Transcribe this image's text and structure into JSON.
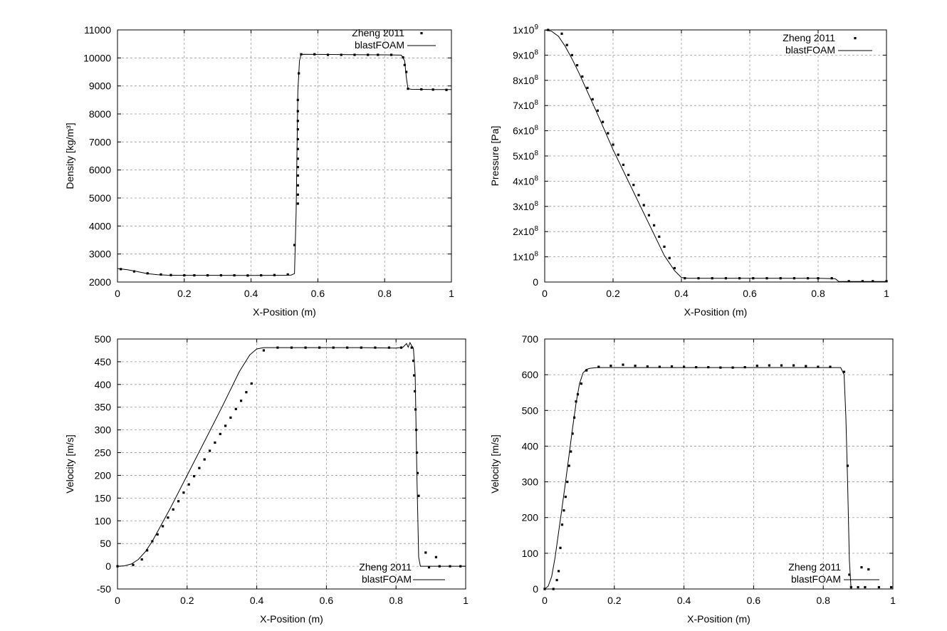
{
  "chart_data": [
    {
      "type": "line",
      "xlabel": "X-Position (m)",
      "ylabel": "Density [kg/m³]",
      "xlim": [
        0,
        1
      ],
      "ylim": [
        2000,
        11000
      ],
      "x_ticks": [
        "0",
        "0.2",
        "0.4",
        "0.6",
        "0.8",
        "1"
      ],
      "y_ticks": [
        "2000",
        "3000",
        "4000",
        "5000",
        "6000",
        "7000",
        "8000",
        "9000",
        "10000",
        "11000"
      ],
      "grid": true,
      "legend_position": "top-right",
      "series": [
        {
          "name": "Zheng 2011",
          "style": "points",
          "x": [
            0.01,
            0.05,
            0.09,
            0.13,
            0.16,
            0.2,
            0.23,
            0.27,
            0.31,
            0.35,
            0.39,
            0.43,
            0.47,
            0.51,
            0.53,
            0.54,
            0.54,
            0.54,
            0.54,
            0.54,
            0.54,
            0.54,
            0.54,
            0.54,
            0.54,
            0.54,
            0.54,
            0.543,
            0.55,
            0.59,
            0.63,
            0.67,
            0.71,
            0.75,
            0.78,
            0.82,
            0.855,
            0.86,
            0.865,
            0.87,
            0.91,
            0.945,
            0.985
          ],
          "y": [
            2460,
            2380,
            2310,
            2270,
            2250,
            2240,
            2240,
            2240,
            2240,
            2240,
            2235,
            2240,
            2250,
            2270,
            3320,
            4800,
            5120,
            5450,
            5800,
            6100,
            6400,
            6750,
            7100,
            7450,
            7750,
            8100,
            8500,
            9450,
            10130,
            10130,
            10110,
            10110,
            10110,
            10110,
            10110,
            10110,
            10020,
            9750,
            9500,
            8900,
            8880,
            8870,
            8860
          ]
        },
        {
          "name": "blastFOAM",
          "style": "line",
          "x": [
            0.0,
            0.03,
            0.06,
            0.09,
            0.12,
            0.15,
            0.2,
            0.3,
            0.4,
            0.5,
            0.52,
            0.53,
            0.535,
            0.54,
            0.545,
            0.55,
            0.6,
            0.7,
            0.8,
            0.85,
            0.86,
            0.865,
            0.87,
            0.88,
            0.95,
            1.0
          ],
          "y": [
            2480,
            2440,
            2370,
            2300,
            2260,
            2245,
            2240,
            2240,
            2235,
            2240,
            2250,
            2300,
            4500,
            8800,
            9900,
            10130,
            10125,
            10115,
            10110,
            10100,
            9900,
            9300,
            8900,
            8880,
            8870,
            8870
          ]
        }
      ]
    },
    {
      "type": "line",
      "xlabel": "X-Position (m)",
      "ylabel": "Pressure [Pa]",
      "xlim": [
        0,
        1
      ],
      "ylim": [
        0,
        1000000000
      ],
      "x_ticks": [
        "0",
        "0.2",
        "0.4",
        "0.6",
        "0.8",
        "1"
      ],
      "y_ticks": [
        "0",
        "1x10^8",
        "2x10^8",
        "3x10^8",
        "4x10^8",
        "5x10^8",
        "6x10^8",
        "7x10^8",
        "8x10^8",
        "9x10^8",
        "1x10^9"
      ],
      "grid": true,
      "legend_position": "top-right",
      "series": [
        {
          "name": "Zheng 2011",
          "style": "points",
          "x": [
            0.01,
            0.05,
            0.065,
            0.08,
            0.095,
            0.11,
            0.125,
            0.14,
            0.155,
            0.17,
            0.185,
            0.2,
            0.215,
            0.23,
            0.245,
            0.26,
            0.275,
            0.29,
            0.305,
            0.32,
            0.335,
            0.35,
            0.365,
            0.38,
            0.41,
            0.45,
            0.49,
            0.53,
            0.57,
            0.61,
            0.65,
            0.69,
            0.73,
            0.77,
            0.8,
            0.84,
            0.89,
            0.93,
            0.96,
            1.0
          ],
          "y": [
            1000000000,
            985000000,
            940000000,
            900000000,
            860000000,
            815000000,
            770000000,
            725000000,
            680000000,
            635000000,
            590000000,
            545000000,
            505000000,
            465000000,
            425000000,
            385000000,
            345000000,
            305000000,
            265000000,
            225000000,
            180000000,
            140000000,
            95000000,
            55000000,
            15000000,
            15000000,
            15000000,
            15000000,
            15000000,
            15000000,
            15000000,
            15000000,
            15000000,
            15000000,
            15000000,
            15000000,
            3000000,
            3000000,
            3000000,
            3000000
          ]
        },
        {
          "name": "blastFOAM",
          "style": "line",
          "x": [
            0.0,
            0.02,
            0.04,
            0.06,
            0.08,
            0.1,
            0.15,
            0.2,
            0.25,
            0.3,
            0.35,
            0.38,
            0.4,
            0.42,
            0.5,
            0.6,
            0.7,
            0.8,
            0.85,
            0.855,
            0.86,
            0.9,
            1.0
          ],
          "y": [
            1000000000,
            995000000,
            975000000,
            935000000,
            885000000,
            830000000,
            680000000,
            525000000,
            385000000,
            245000000,
            105000000,
            45000000,
            18000000,
            15000000,
            15000000,
            15000000,
            15000000,
            15000000,
            13000000,
            8000000,
            2000000,
            2000000,
            2000000
          ]
        }
      ]
    },
    {
      "type": "line",
      "xlabel": "X-Position (m)",
      "ylabel": "Velocity [m/s]",
      "xlim": [
        0,
        1
      ],
      "ylim": [
        -50,
        500
      ],
      "x_ticks": [
        "0",
        "0.2",
        "0.4",
        "0.6",
        "0.8",
        "1"
      ],
      "y_ticks": [
        "-50",
        "0",
        "50",
        "100",
        "150",
        "200",
        "250",
        "300",
        "350",
        "400",
        "450",
        "500"
      ],
      "grid": true,
      "legend_position": "bottom-right",
      "series": [
        {
          "name": "Zheng 2011",
          "style": "points",
          "x": [
            0.0,
            0.045,
            0.07,
            0.085,
            0.1,
            0.115,
            0.13,
            0.145,
            0.16,
            0.175,
            0.19,
            0.205,
            0.22,
            0.235,
            0.25,
            0.265,
            0.28,
            0.295,
            0.31,
            0.325,
            0.34,
            0.355,
            0.37,
            0.385,
            0.42,
            0.46,
            0.5,
            0.54,
            0.58,
            0.62,
            0.66,
            0.7,
            0.74,
            0.78,
            0.815,
            0.845,
            0.85,
            0.852,
            0.854,
            0.856,
            0.858,
            0.86,
            0.862,
            0.865,
            0.885,
            0.915,
            0.925,
            0.955,
            0.985
          ],
          "y": [
            0,
            3,
            15,
            35,
            55,
            70,
            88,
            107,
            125,
            143,
            162,
            180,
            198,
            216,
            235,
            254,
            272,
            291,
            309,
            327,
            346,
            364,
            383,
            402,
            475,
            481,
            481,
            481,
            481,
            481,
            481,
            481,
            481,
            481,
            481,
            481,
            452,
            420,
            385,
            345,
            300,
            250,
            205,
            155,
            30,
            20,
            0,
            0,
            0
          ]
        },
        {
          "name": "blastFOAM",
          "style": "line",
          "x": [
            0.0,
            0.02,
            0.04,
            0.06,
            0.08,
            0.1,
            0.15,
            0.2,
            0.25,
            0.3,
            0.35,
            0.38,
            0.4,
            0.42,
            0.5,
            0.6,
            0.7,
            0.8,
            0.82,
            0.83,
            0.835,
            0.84,
            0.845,
            0.85,
            0.855,
            0.86,
            0.865,
            0.87,
            0.9,
            1.0
          ],
          "y": [
            0,
            1,
            5,
            15,
            32,
            55,
            125,
            200,
            275,
            350,
            428,
            465,
            478,
            481,
            481,
            481,
            481,
            480,
            482,
            490,
            482,
            492,
            485,
            480,
            420,
            200,
            20,
            0,
            0,
            0
          ]
        }
      ]
    },
    {
      "type": "line",
      "xlabel": "X-Position (m)",
      "ylabel": "Velocity [m/s]",
      "xlim": [
        0,
        1
      ],
      "ylim": [
        0,
        700
      ],
      "x_ticks": [
        "0",
        "0.2",
        "0.4",
        "0.6",
        "0.8",
        "1"
      ],
      "y_ticks": [
        "0",
        "100",
        "200",
        "300",
        "400",
        "500",
        "600",
        "700"
      ],
      "grid": true,
      "legend_position": "bottom-right",
      "series": [
        {
          "name": "Zheng 2011",
          "style": "points",
          "x": [
            0.0,
            0.025,
            0.035,
            0.04,
            0.045,
            0.05,
            0.055,
            0.06,
            0.065,
            0.07,
            0.075,
            0.08,
            0.085,
            0.09,
            0.095,
            0.105,
            0.12,
            0.155,
            0.19,
            0.225,
            0.26,
            0.295,
            0.33,
            0.365,
            0.4,
            0.435,
            0.47,
            0.505,
            0.54,
            0.575,
            0.61,
            0.645,
            0.68,
            0.715,
            0.75,
            0.785,
            0.82,
            0.86,
            0.87,
            0.875,
            0.88,
            0.9,
            0.92,
            0.93,
            0.96,
            0.995
          ],
          "y": [
            0,
            0,
            25,
            50,
            115,
            180,
            220,
            258,
            300,
            345,
            385,
            435,
            480,
            525,
            545,
            575,
            612,
            622,
            625,
            628,
            625,
            623,
            622,
            623,
            622,
            621,
            621,
            620,
            620,
            621,
            625,
            626,
            626,
            626,
            624,
            622,
            622,
            608,
            345,
            40,
            5,
            5,
            5,
            55,
            5,
            5
          ]
        },
        {
          "name": "blastFOAM",
          "style": "line",
          "x": [
            0.0,
            0.01,
            0.02,
            0.03,
            0.04,
            0.05,
            0.06,
            0.07,
            0.08,
            0.09,
            0.1,
            0.11,
            0.12,
            0.13,
            0.15,
            0.2,
            0.4,
            0.6,
            0.8,
            0.85,
            0.86,
            0.865,
            0.87,
            0.875,
            0.88,
            0.9,
            1.0
          ],
          "y": [
            0,
            8,
            35,
            90,
            160,
            230,
            300,
            375,
            450,
            520,
            575,
            605,
            615,
            618,
            620,
            620,
            620,
            620,
            620,
            620,
            600,
            480,
            300,
            80,
            0,
            0,
            0
          ]
        }
      ]
    }
  ]
}
